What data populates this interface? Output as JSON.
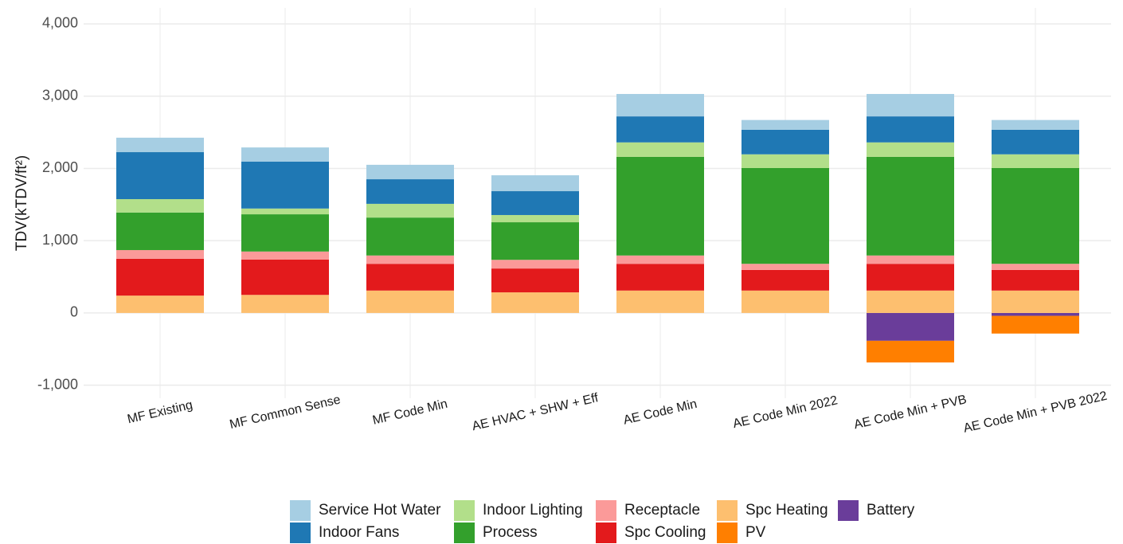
{
  "chart_data": {
    "type": "stacked_bar",
    "y_label": "TDV(kTDV/ft²)",
    "categories": [
      "MF Existing",
      "MF Common Sense",
      "MF Code Min",
      "AE HVAC + SHW + Eff",
      "AE Code Min",
      "AE Code Min 2022",
      "AE Code Min + PVB",
      "AE Code Min + PVB 2022"
    ],
    "series": [
      {
        "name": "Service Hot Water",
        "color": "#a6cee3",
        "values": [
          200,
          195,
          200,
          220,
          310,
          135,
          310,
          135
        ]
      },
      {
        "name": "Indoor Fans",
        "color": "#1f78b4",
        "values": [
          650,
          650,
          340,
          330,
          360,
          340,
          360,
          340
        ]
      },
      {
        "name": "Indoor Lighting",
        "color": "#b2df8a",
        "values": [
          185,
          80,
          190,
          100,
          200,
          190,
          200,
          190
        ]
      },
      {
        "name": "Process",
        "color": "#33a02c",
        "values": [
          520,
          515,
          525,
          520,
          1365,
          1325,
          1365,
          1325
        ]
      },
      {
        "name": "Receptacle",
        "color": "#fb9a99",
        "values": [
          120,
          110,
          115,
          120,
          115,
          85,
          115,
          85
        ]
      },
      {
        "name": "Spc Cooling",
        "color": "#e31a1c",
        "values": [
          510,
          490,
          370,
          330,
          370,
          285,
          370,
          285
        ]
      },
      {
        "name": "Spc Heating",
        "color": "#fdbf6f",
        "values": [
          240,
          250,
          310,
          285,
          310,
          310,
          310,
          310
        ]
      },
      {
        "name": "PV",
        "color": "#ff7f00",
        "values": [
          0,
          0,
          0,
          0,
          0,
          0,
          -300,
          -245
        ]
      },
      {
        "name": "Battery",
        "color": "#6a3d9a",
        "values": [
          0,
          0,
          0,
          0,
          0,
          0,
          -385,
          -40
        ]
      }
    ],
    "ylim": [
      -1180,
      4220
    ],
    "yticks": [
      {
        "value": -1000,
        "label": "-1,000"
      },
      0,
      {
        "value": 1000,
        "label": "1,000"
      },
      {
        "value": 2000,
        "label": "2,000"
      },
      {
        "value": 3000,
        "label": "3,000"
      },
      {
        "value": 4000,
        "label": "4,000"
      }
    ],
    "grid": true
  }
}
